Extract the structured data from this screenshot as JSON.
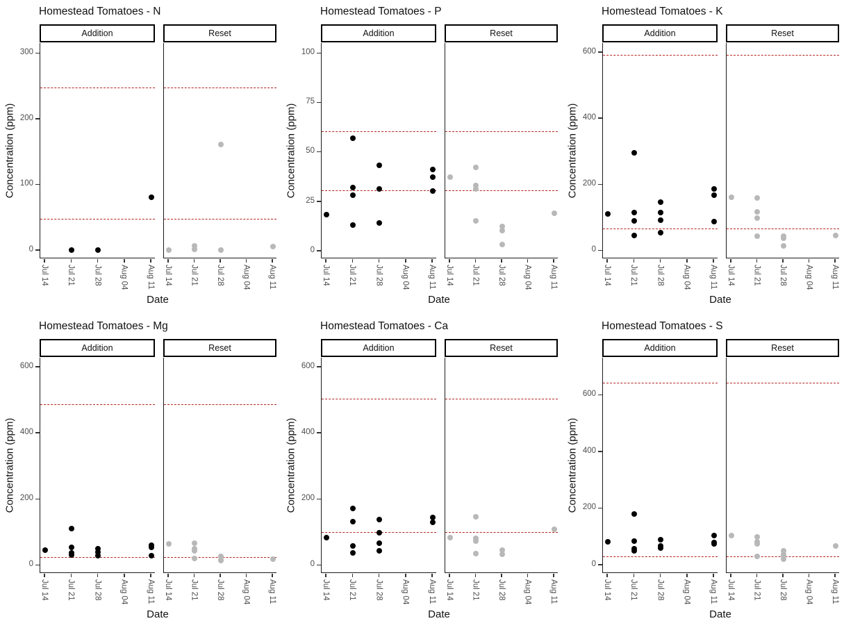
{
  "page": {
    "background": "#ffffff"
  },
  "facets": [
    "Addition",
    "Reset"
  ],
  "axis": {
    "x_label": "Date",
    "y_label": "Concentration (ppm)",
    "x_ticks": [
      "Jul 14",
      "Jul 21",
      "Jul 28",
      "Aug 04",
      "Aug 11"
    ]
  },
  "colors": {
    "addition_point": "#000000",
    "reset_point": "#b8b8b8",
    "ref_line": "#b22222",
    "axis_text": "#4d4d4d",
    "axis_line": "#1a1a1a"
  },
  "chart_data": [
    {
      "type": "scatter",
      "title": "Homestead Tomatoes - N",
      "nutrient": "N",
      "xlabel": "Date",
      "ylabel": "Concentration (ppm)",
      "x_categories": [
        "Jul 14",
        "Jul 21",
        "Jul 28",
        "Aug 04",
        "Aug 11"
      ],
      "y_ticks": [
        0,
        100,
        200,
        300
      ],
      "ylim": [
        -13,
        315
      ],
      "grid": false,
      "ref_lines": {
        "upper": 246,
        "lower": 46
      },
      "series": [
        {
          "name": "Addition",
          "points": [
            [
              "Jul 21",
              0
            ],
            [
              "Jul 28",
              0
            ],
            [
              "Aug 11",
              80
            ]
          ]
        },
        {
          "name": "Reset",
          "points": [
            [
              "Jul 14",
              0
            ],
            [
              "Jul 21",
              6
            ],
            [
              "Jul 21",
              1
            ],
            [
              "Jul 28",
              160
            ],
            [
              "Jul 28",
              0
            ],
            [
              "Aug 11",
              5
            ]
          ]
        }
      ]
    },
    {
      "type": "scatter",
      "title": "Homestead Tomatoes - P",
      "nutrient": "P",
      "xlabel": "Date",
      "ylabel": "Concentration (ppm)",
      "x_categories": [
        "Jul 14",
        "Jul 21",
        "Jul 28",
        "Aug 04",
        "Aug 11"
      ],
      "y_ticks": [
        0,
        25,
        50,
        75,
        100
      ],
      "ylim": [
        -4,
        105
      ],
      "grid": false,
      "ref_lines": {
        "upper": 60,
        "lower": 30
      },
      "series": [
        {
          "name": "Addition",
          "points": [
            [
              "Jul 14",
              18
            ],
            [
              "Jul 21",
              57
            ],
            [
              "Jul 21",
              32
            ],
            [
              "Jul 21",
              28
            ],
            [
              "Jul 21",
              13
            ],
            [
              "Jul 28",
              43
            ],
            [
              "Jul 28",
              31
            ],
            [
              "Jul 28",
              14
            ],
            [
              "Aug 11",
              41
            ],
            [
              "Aug 11",
              37
            ],
            [
              "Aug 11",
              30
            ]
          ]
        },
        {
          "name": "Reset",
          "points": [
            [
              "Jul 14",
              37
            ],
            [
              "Jul 21",
              42
            ],
            [
              "Jul 21",
              33
            ],
            [
              "Jul 21",
              31
            ],
            [
              "Jul 21",
              15
            ],
            [
              "Jul 28",
              12
            ],
            [
              "Jul 28",
              10
            ],
            [
              "Jul 28",
              3
            ],
            [
              "Aug 11",
              19
            ]
          ]
        }
      ]
    },
    {
      "type": "scatter",
      "title": "Homestead Tomatoes - K",
      "nutrient": "K",
      "xlabel": "Date",
      "ylabel": "Concentration (ppm)",
      "x_categories": [
        "Jul 14",
        "Jul 21",
        "Jul 28",
        "Aug 04",
        "Aug 11"
      ],
      "y_ticks": [
        0,
        200,
        400,
        600
      ],
      "ylim": [
        -25,
        627
      ],
      "grid": false,
      "ref_lines": {
        "upper": 590,
        "lower": 64
      },
      "series": [
        {
          "name": "Addition",
          "points": [
            [
              "Jul 14",
              110
            ],
            [
              "Jul 21",
              295
            ],
            [
              "Jul 21",
              113
            ],
            [
              "Jul 21",
              88
            ],
            [
              "Jul 21",
              45
            ],
            [
              "Jul 28",
              145
            ],
            [
              "Jul 28",
              113
            ],
            [
              "Jul 28",
              90
            ],
            [
              "Jul 28",
              53
            ],
            [
              "Aug 11",
              185
            ],
            [
              "Aug 11",
              167
            ],
            [
              "Aug 11",
              87
            ]
          ]
        },
        {
          "name": "Reset",
          "points": [
            [
              "Jul 14",
              160
            ],
            [
              "Jul 21",
              157
            ],
            [
              "Jul 21",
              115
            ],
            [
              "Jul 21",
              98
            ],
            [
              "Jul 21",
              43
            ],
            [
              "Jul 28",
              42
            ],
            [
              "Jul 28",
              35
            ],
            [
              "Jul 28",
              12
            ],
            [
              "Aug 11",
              45
            ]
          ]
        }
      ]
    },
    {
      "type": "scatter",
      "title": "Homestead Tomatoes - Mg",
      "nutrient": "Mg",
      "xlabel": "Date",
      "ylabel": "Concentration (ppm)",
      "x_categories": [
        "Jul 14",
        "Jul 21",
        "Jul 28",
        "Aug 04",
        "Aug 11"
      ],
      "y_ticks": [
        0,
        200,
        400,
        600
      ],
      "ylim": [
        -25,
        627
      ],
      "grid": false,
      "ref_lines": {
        "upper": 485,
        "lower": 22
      },
      "series": [
        {
          "name": "Addition",
          "points": [
            [
              "Jul 14",
              45
            ],
            [
              "Jul 21",
              110
            ],
            [
              "Jul 21",
              52
            ],
            [
              "Jul 21",
              35
            ],
            [
              "Jul 21",
              30
            ],
            [
              "Jul 28",
              48
            ],
            [
              "Jul 28",
              38
            ],
            [
              "Jul 28",
              28
            ],
            [
              "Aug 11",
              60
            ],
            [
              "Aug 11",
              52
            ],
            [
              "Aug 11",
              28
            ]
          ]
        },
        {
          "name": "Reset",
          "points": [
            [
              "Jul 14",
              63
            ],
            [
              "Jul 21",
              65
            ],
            [
              "Jul 21",
              48
            ],
            [
              "Jul 21",
              43
            ],
            [
              "Jul 21",
              20
            ],
            [
              "Jul 28",
              25
            ],
            [
              "Jul 28",
              15
            ],
            [
              "Jul 28",
              12
            ],
            [
              "Aug 11",
              18
            ]
          ]
        }
      ]
    },
    {
      "type": "scatter",
      "title": "Homestead Tomatoes - Ca",
      "nutrient": "Ca",
      "xlabel": "Date",
      "ylabel": "Concentration (ppm)",
      "x_categories": [
        "Jul 14",
        "Jul 21",
        "Jul 28",
        "Aug 04",
        "Aug 11"
      ],
      "y_ticks": [
        0,
        200,
        400,
        600
      ],
      "ylim": [
        -25,
        627
      ],
      "grid": false,
      "ref_lines": {
        "upper": 500,
        "lower": 97
      },
      "series": [
        {
          "name": "Addition",
          "points": [
            [
              "Jul 14",
              82
            ],
            [
              "Jul 21",
              170
            ],
            [
              "Jul 21",
              130
            ],
            [
              "Jul 21",
              58
            ],
            [
              "Jul 21",
              37
            ],
            [
              "Jul 28",
              138
            ],
            [
              "Jul 28",
              97
            ],
            [
              "Jul 28",
              65
            ],
            [
              "Jul 28",
              42
            ],
            [
              "Aug 11",
              143
            ],
            [
              "Aug 11",
              128
            ]
          ]
        },
        {
          "name": "Reset",
          "points": [
            [
              "Jul 14",
              82
            ],
            [
              "Jul 21",
              145
            ],
            [
              "Jul 21",
              80
            ],
            [
              "Jul 21",
              72
            ],
            [
              "Jul 21",
              33
            ],
            [
              "Jul 28",
              45
            ],
            [
              "Jul 28",
              32
            ],
            [
              "Aug 11",
              108
            ]
          ]
        }
      ]
    },
    {
      "type": "scatter",
      "title": "Homestead Tomatoes - S",
      "nutrient": "S",
      "xlabel": "Date",
      "ylabel": "Concentration (ppm)",
      "x_categories": [
        "Jul 14",
        "Jul 21",
        "Jul 28",
        "Aug 04",
        "Aug 11"
      ],
      "y_ticks": [
        0,
        200,
        400,
        600
      ],
      "ylim": [
        -30,
        730
      ],
      "grid": false,
      "ref_lines": {
        "upper": 640,
        "lower": 26
      },
      "series": [
        {
          "name": "Addition",
          "points": [
            [
              "Jul 14",
              80
            ],
            [
              "Jul 21",
              178
            ],
            [
              "Jul 21",
              82
            ],
            [
              "Jul 21",
              55
            ],
            [
              "Jul 21",
              48
            ],
            [
              "Jul 28",
              88
            ],
            [
              "Jul 28",
              65
            ],
            [
              "Jul 28",
              58
            ],
            [
              "Aug 11",
              103
            ],
            [
              "Aug 11",
              78
            ],
            [
              "Aug 11",
              72
            ]
          ]
        },
        {
          "name": "Reset",
          "points": [
            [
              "Jul 14",
              103
            ],
            [
              "Jul 21",
              98
            ],
            [
              "Jul 21",
              80
            ],
            [
              "Jul 21",
              72
            ],
            [
              "Jul 21",
              28
            ],
            [
              "Jul 28",
              48
            ],
            [
              "Jul 28",
              35
            ],
            [
              "Jul 28",
              28
            ],
            [
              "Jul 28",
              18
            ],
            [
              "Aug 11",
              65
            ]
          ]
        }
      ]
    }
  ]
}
